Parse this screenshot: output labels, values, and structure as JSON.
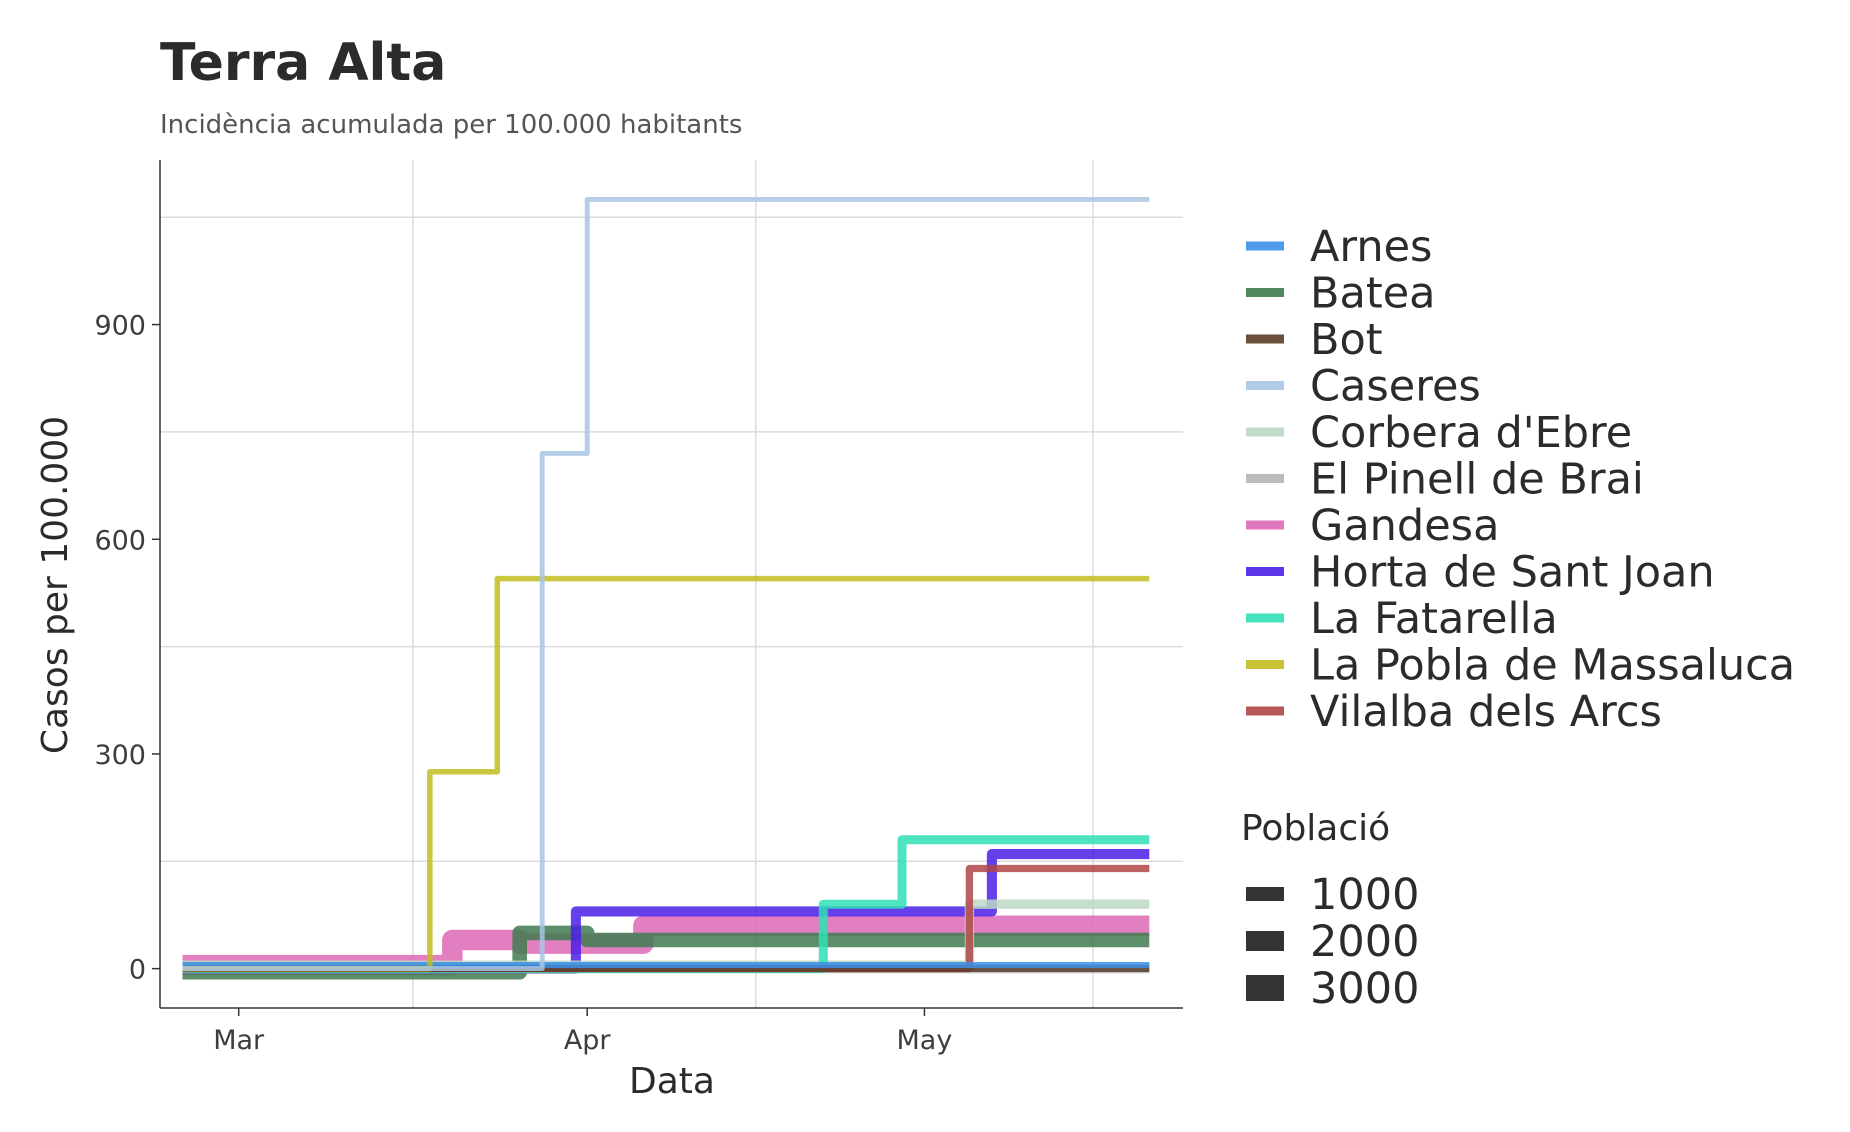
{
  "chart_data": {
    "type": "line",
    "title": "Terra Alta",
    "subtitle": "Incidència acumulada per 100.000 habitants",
    "xlabel": "Data",
    "ylabel": "Casos per 100.000",
    "x_tick_labels": [
      "Mar",
      "Apr",
      "May"
    ],
    "x_ticks": [
      "2020-03-01",
      "2020-04-01",
      "2020-05-01"
    ],
    "xlim": [
      "2020-02-23",
      "2020-05-24"
    ],
    "y_ticks": [
      0,
      300,
      600,
      900
    ],
    "ylim": [
      -55,
      1130
    ],
    "grid": true,
    "legend_position": "right",
    "series": [
      {
        "name": "Arnes",
        "color": "#3b8fe8",
        "population": 470,
        "points": [
          [
            "2020-02-25",
            5
          ],
          [
            "2020-05-21",
            5
          ]
        ]
      },
      {
        "name": "Batea",
        "color": "#3f7b4f",
        "population": 2030,
        "points": [
          [
            "2020-02-25",
            -5
          ],
          [
            "2020-03-26",
            -5
          ],
          [
            "2020-03-26",
            50
          ],
          [
            "2020-04-01",
            50
          ],
          [
            "2020-04-01",
            40
          ],
          [
            "2020-05-21",
            40
          ]
        ]
      },
      {
        "name": "Bot",
        "color": "#5a3c28",
        "population": 600,
        "points": [
          [
            "2020-02-25",
            0
          ],
          [
            "2020-05-21",
            0
          ]
        ]
      },
      {
        "name": "Caseres",
        "color": "#a9c4e4",
        "population": 260,
        "points": [
          [
            "2020-02-25",
            0
          ],
          [
            "2020-03-28",
            0
          ],
          [
            "2020-03-28",
            720
          ],
          [
            "2020-04-01",
            720
          ],
          [
            "2020-04-01",
            1075
          ],
          [
            "2020-05-21",
            1075
          ]
        ]
      },
      {
        "name": "Corbera d'Ebre",
        "color": "#bcd8c4",
        "population": 1050,
        "points": [
          [
            "2020-02-25",
            5
          ],
          [
            "2020-05-05",
            5
          ],
          [
            "2020-05-05",
            90
          ],
          [
            "2020-05-21",
            90
          ]
        ]
      },
      {
        "name": "El Pinell de Brai",
        "color": "#b5b5b5",
        "population": 1050,
        "points": [
          [
            "2020-02-25",
            0
          ],
          [
            "2020-05-21",
            0
          ]
        ]
      },
      {
        "name": "Gandesa",
        "color": "#dc69b6",
        "population": 3100,
        "points": [
          [
            "2020-02-25",
            5
          ],
          [
            "2020-03-20",
            5
          ],
          [
            "2020-03-20",
            40
          ],
          [
            "2020-03-26",
            40
          ],
          [
            "2020-03-26",
            35
          ],
          [
            "2020-04-06",
            35
          ],
          [
            "2020-04-06",
            60
          ],
          [
            "2020-05-21",
            60
          ]
        ]
      },
      {
        "name": "Horta de Sant Joan",
        "color": "#4a1ee8",
        "population": 1200,
        "points": [
          [
            "2020-02-25",
            0
          ],
          [
            "2020-03-31",
            0
          ],
          [
            "2020-03-31",
            80
          ],
          [
            "2020-05-07",
            80
          ],
          [
            "2020-05-07",
            160
          ],
          [
            "2020-05-21",
            160
          ]
        ]
      },
      {
        "name": "La Fatarella",
        "color": "#2ee0b6",
        "population": 1000,
        "points": [
          [
            "2020-02-25",
            0
          ],
          [
            "2020-04-22",
            0
          ],
          [
            "2020-04-22",
            90
          ],
          [
            "2020-04-29",
            90
          ],
          [
            "2020-04-29",
            180
          ],
          [
            "2020-05-21",
            180
          ]
        ]
      },
      {
        "name": "La Pobla de Massaluca",
        "color": "#c2bd20",
        "population": 360,
        "points": [
          [
            "2020-02-25",
            0
          ],
          [
            "2020-03-18",
            0
          ],
          [
            "2020-03-18",
            275
          ],
          [
            "2020-03-24",
            275
          ],
          [
            "2020-03-24",
            545
          ],
          [
            "2020-05-21",
            545
          ]
        ]
      },
      {
        "name": "Vilalba dels Arcs",
        "color": "#b04545",
        "population": 700,
        "points": [
          [
            "2020-02-25",
            0
          ],
          [
            "2020-05-05",
            0
          ],
          [
            "2020-05-05",
            140
          ],
          [
            "2020-05-21",
            140
          ]
        ]
      }
    ],
    "size_legend": {
      "title": "Població",
      "entries": [
        "1000",
        "2000",
        "3000"
      ],
      "values": [
        1000,
        2000,
        3000
      ]
    }
  }
}
